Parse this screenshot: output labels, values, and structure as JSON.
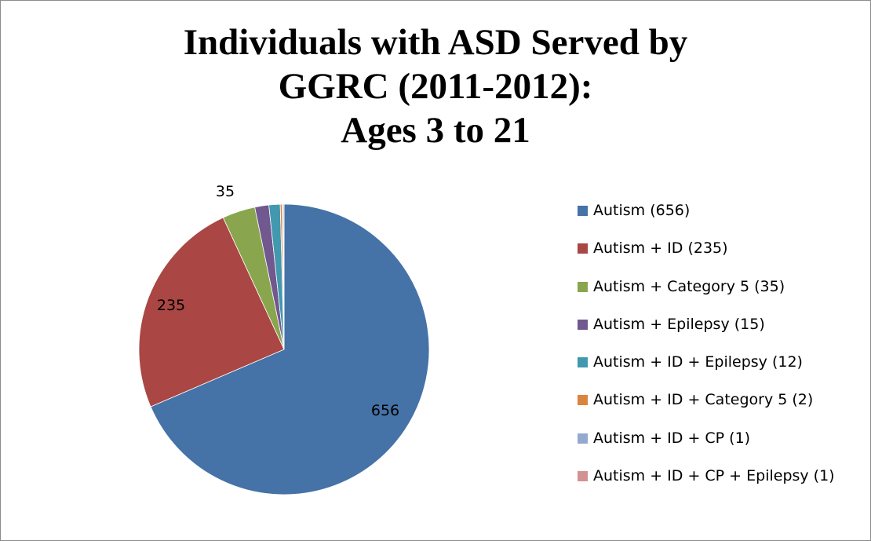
{
  "chart_data": {
    "type": "pie",
    "title_lines": [
      "Individuals with ASD Served by",
      "GGRC (2011-2012):",
      "Ages 3 to 21"
    ],
    "slices": [
      {
        "label": "Autism (656)",
        "value": 656,
        "color": "#4572A7",
        "data_label": "656"
      },
      {
        "label": "Autism + ID (235)",
        "value": 235,
        "color": "#AA4643",
        "data_label": "235"
      },
      {
        "label": "Autism + Category 5 (35)",
        "value": 35,
        "color": "#89A54E",
        "data_label": "35"
      },
      {
        "label": "Autism + Epilepsy (15)",
        "value": 15,
        "color": "#71588F",
        "data_label": ""
      },
      {
        "label": "Autism + ID + Epilepsy (12)",
        "value": 12,
        "color": "#4198AF",
        "data_label": ""
      },
      {
        "label": "Autism + ID + Category 5 (2)",
        "value": 2,
        "color": "#DB843D",
        "data_label": ""
      },
      {
        "label": "Autism + ID + CP (1)",
        "value": 1,
        "color": "#93A9CF",
        "data_label": ""
      },
      {
        "label": "Autism + ID + CP + Epilepsy (1)",
        "value": 1,
        "color": "#D19392",
        "data_label": ""
      }
    ],
    "legend_position": "right"
  }
}
